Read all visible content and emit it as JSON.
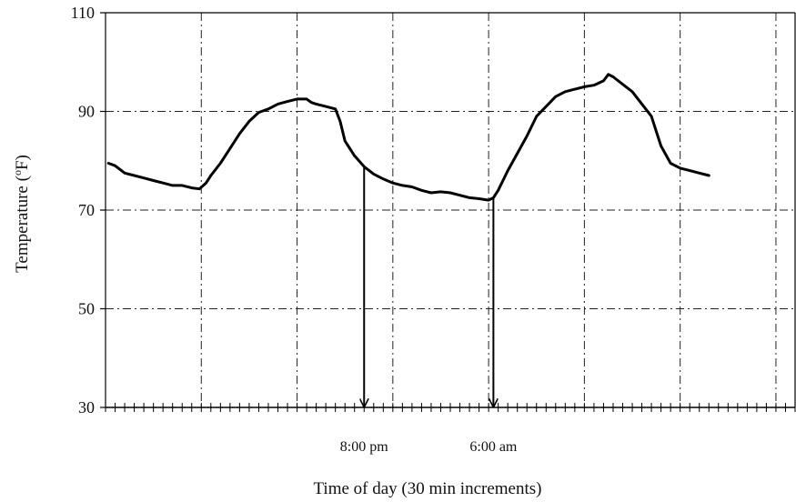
{
  "chart_data": {
    "type": "line",
    "title": "",
    "xlabel": "Time of day (30 min increments)",
    "ylabel": "Temperature (°F)",
    "ylabel_parts": {
      "prefix": "Temperature (",
      "superscript": "o",
      "suffix": "F)"
    },
    "ylim": [
      30,
      110
    ],
    "yticks": [
      "30",
      "50",
      "70",
      "90",
      "110"
    ],
    "xlim": [
      0,
      72
    ],
    "x_minor_tick_step": 1,
    "x_grid_lines": [
      10,
      20,
      30,
      40,
      50,
      60,
      70
    ],
    "grid": true,
    "grid_style": "dash-dot",
    "legend": "none",
    "line_color": "#000000",
    "series": [
      {
        "values": [
          [
            0.3,
            79.5
          ],
          [
            1,
            79
          ],
          [
            2,
            77.5
          ],
          [
            3,
            77
          ],
          [
            4,
            76.5
          ],
          [
            5,
            76
          ],
          [
            6,
            75.5
          ],
          [
            7,
            75
          ],
          [
            8,
            75
          ],
          [
            9,
            74.5
          ],
          [
            9.8,
            74.3
          ],
          [
            10.5,
            75.5
          ],
          [
            11,
            77
          ],
          [
            12,
            79.5
          ],
          [
            13,
            82.5
          ],
          [
            14,
            85.5
          ],
          [
            15,
            88
          ],
          [
            16,
            89.8
          ],
          [
            17,
            90.5
          ],
          [
            18,
            91.5
          ],
          [
            19,
            92
          ],
          [
            20,
            92.5
          ],
          [
            21,
            92.5
          ],
          [
            21.5,
            91.8
          ],
          [
            22,
            91.5
          ],
          [
            23,
            91
          ],
          [
            24,
            90.5
          ],
          [
            24.5,
            88
          ],
          [
            25,
            84
          ],
          [
            26,
            81
          ],
          [
            27,
            78.8
          ],
          [
            28,
            77.3
          ],
          [
            29,
            76.3
          ],
          [
            30,
            75.5
          ],
          [
            31,
            75
          ],
          [
            32,
            74.7
          ],
          [
            33,
            74
          ],
          [
            34,
            73.5
          ],
          [
            35,
            73.7
          ],
          [
            36,
            73.5
          ],
          [
            37,
            73
          ],
          [
            38,
            72.5
          ],
          [
            39,
            72.3
          ],
          [
            40,
            72
          ],
          [
            40.5,
            72.5
          ],
          [
            41,
            74
          ],
          [
            42,
            78
          ],
          [
            43,
            81.5
          ],
          [
            44,
            85
          ],
          [
            45,
            89
          ],
          [
            46,
            91
          ],
          [
            47,
            93
          ],
          [
            48,
            94
          ],
          [
            49,
            94.5
          ],
          [
            50,
            95
          ],
          [
            51,
            95.3
          ],
          [
            52,
            96.2
          ],
          [
            52.5,
            97.5
          ],
          [
            53,
            97
          ],
          [
            54,
            95.5
          ],
          [
            55,
            94
          ],
          [
            56,
            91.5
          ],
          [
            57,
            89
          ],
          [
            57.5,
            86
          ],
          [
            58,
            83
          ],
          [
            59,
            79.5
          ],
          [
            60,
            78.5
          ],
          [
            61,
            78
          ],
          [
            62,
            77.5
          ],
          [
            63,
            77
          ]
        ]
      }
    ],
    "annotations": [
      {
        "text": "8:00 pm",
        "x": 27,
        "arrow_from_y": 78.8,
        "arrow_to_y": 30
      },
      {
        "text": "6:00 am",
        "x": 40.5,
        "arrow_from_y": 72.5,
        "arrow_to_y": 30
      }
    ]
  }
}
